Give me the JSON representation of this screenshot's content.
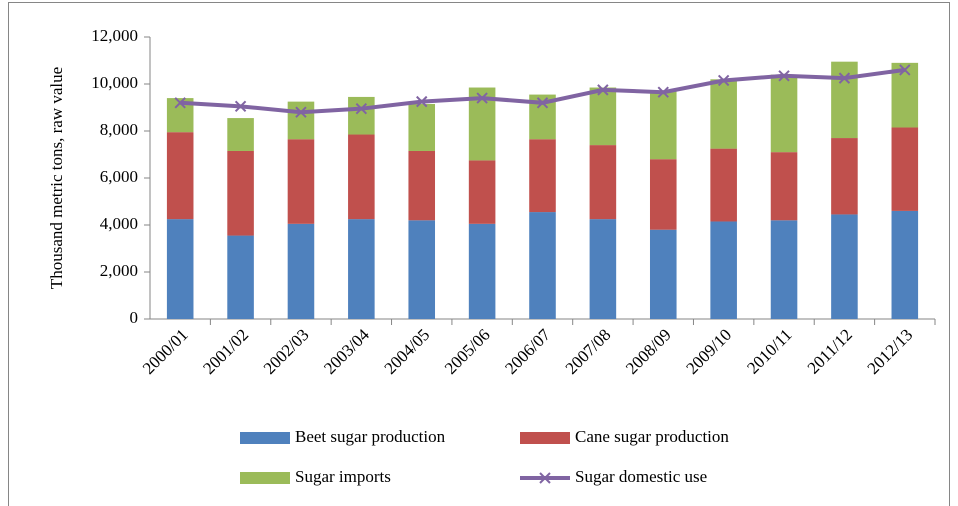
{
  "chart_data": {
    "type": "bar",
    "stacked": true,
    "y_label": "Thousand metric tons, raw value",
    "categories": [
      "2000/01",
      "2001/02",
      "2002/03",
      "2003/04",
      "2004/05",
      "2005/06",
      "2006/07",
      "2007/08",
      "2008/09",
      "2009/10",
      "2010/11",
      "2011/12",
      "2012/13"
    ],
    "series": [
      {
        "name": "Beet sugar production",
        "color": "#4f81bd",
        "values": [
          4250,
          3550,
          4050,
          4250,
          4200,
          4050,
          4550,
          4250,
          3800,
          4150,
          4200,
          4450,
          4600
        ]
      },
      {
        "name": "Cane sugar production",
        "color": "#c0504d",
        "values": [
          3700,
          3600,
          3600,
          3600,
          2950,
          2700,
          3100,
          3150,
          3000,
          3100,
          2900,
          3250,
          3550
        ]
      },
      {
        "name": "Sugar imports",
        "color": "#9bbb59",
        "values": [
          1450,
          1400,
          1600,
          1600,
          2000,
          3100,
          1900,
          2450,
          2900,
          2950,
          3300,
          3250,
          2750
        ]
      },
      {
        "name": "Sugar domestic use",
        "color": "#8064a2",
        "type": "line",
        "marker": "x",
        "values": [
          9200,
          9050,
          8800,
          8950,
          9250,
          9400,
          9200,
          9750,
          9650,
          10150,
          10350,
          10250,
          10600
        ]
      }
    ],
    "ylim": [
      0,
      12000
    ],
    "yticks": [
      0,
      {
        "value": 2000,
        "label": "2,000"
      },
      {
        "value": 4000,
        "label": "4,000"
      },
      {
        "value": 6000,
        "label": "6,000"
      },
      {
        "value": 8000,
        "label": "8,000"
      },
      {
        "value": 10000,
        "label": "10,000"
      },
      {
        "value": 12000,
        "label": "12,000"
      }
    ],
    "grid": false,
    "legend": "bottom"
  }
}
